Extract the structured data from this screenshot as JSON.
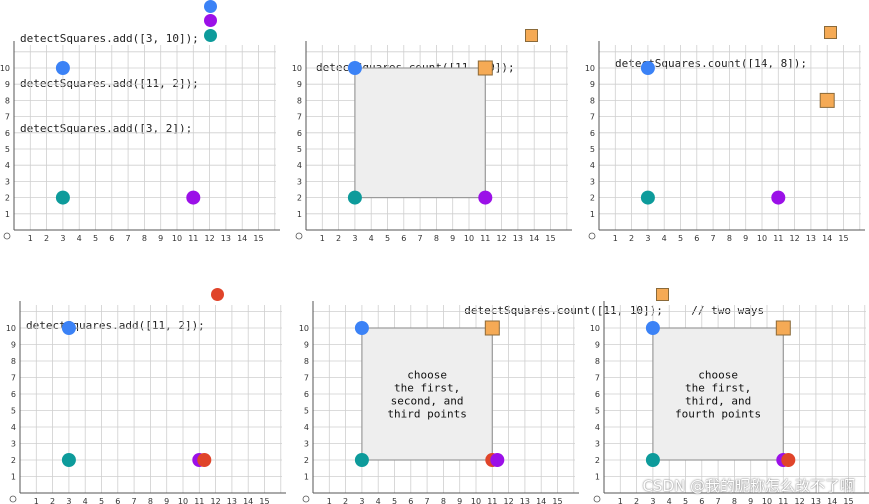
{
  "colors": {
    "blue": "#3b82f6",
    "purple": "#9b10e8",
    "teal": "#0d9b9b",
    "red": "#e0442a",
    "orange": "#f5aa55",
    "grid": "#cfcfcf",
    "axis": "#555555",
    "square_fill": "#eeeeee",
    "square_stroke": "#9a9a9a"
  },
  "captions": [
    {
      "lines": [
        "detectSquares.add([3, 10]);",
        "detectSquares.add([11, 2]);",
        "detectSquares.add([3, 2]);"
      ],
      "markers": [
        "blue",
        "purple",
        "teal"
      ]
    },
    {
      "lines": [
        "detectSquares.count([11, 10]);"
      ],
      "markers": [
        "orange"
      ]
    },
    {
      "lines": [
        "detectSquares.count([14, 8]);"
      ],
      "markers": [
        "orange"
      ]
    },
    {
      "lines": [
        "detectSquares.add([11, 2]);"
      ],
      "markers": [
        "red"
      ]
    },
    {
      "lines": [
        "detectSquares.count([11, 10]);",
        "// two ways"
      ],
      "markers": [
        "orange"
      ]
    }
  ],
  "chart_data": [
    {
      "type": "scatter",
      "x_ticks": [
        "1",
        "2",
        "3",
        "4",
        "5",
        "6",
        "7",
        "8",
        "9",
        "10",
        "11",
        "12",
        "13",
        "14",
        "15"
      ],
      "y_ticks": [
        "1",
        "2",
        "3",
        "4",
        "5",
        "6",
        "7",
        "8",
        "9",
        "10"
      ],
      "points": [
        {
          "x": 3,
          "y": 10,
          "color": "blue",
          "shape": "circle"
        },
        {
          "x": 3,
          "y": 2,
          "color": "teal",
          "shape": "circle"
        },
        {
          "x": 11,
          "y": 2,
          "color": "purple",
          "shape": "circle"
        }
      ]
    },
    {
      "type": "scatter",
      "x_ticks": [
        "1",
        "2",
        "3",
        "4",
        "5",
        "6",
        "7",
        "8",
        "9",
        "10",
        "11",
        "12",
        "13",
        "14",
        "15"
      ],
      "y_ticks": [
        "1",
        "2",
        "3",
        "4",
        "5",
        "6",
        "7",
        "8",
        "9",
        "10"
      ],
      "square": {
        "x1": 3,
        "y1": 2,
        "x2": 11,
        "y2": 10
      },
      "points": [
        {
          "x": 3,
          "y": 10,
          "color": "blue",
          "shape": "circle"
        },
        {
          "x": 3,
          "y": 2,
          "color": "teal",
          "shape": "circle"
        },
        {
          "x": 11,
          "y": 2,
          "color": "purple",
          "shape": "circle"
        },
        {
          "x": 11,
          "y": 10,
          "color": "orange",
          "shape": "square"
        }
      ]
    },
    {
      "type": "scatter",
      "x_ticks": [
        "1",
        "2",
        "3",
        "4",
        "5",
        "6",
        "7",
        "8",
        "9",
        "10",
        "11",
        "12",
        "13",
        "14",
        "15"
      ],
      "y_ticks": [
        "1",
        "2",
        "3",
        "4",
        "5",
        "6",
        "7",
        "8",
        "9",
        "10"
      ],
      "points": [
        {
          "x": 3,
          "y": 10,
          "color": "blue",
          "shape": "circle"
        },
        {
          "x": 3,
          "y": 2,
          "color": "teal",
          "shape": "circle"
        },
        {
          "x": 11,
          "y": 2,
          "color": "purple",
          "shape": "circle"
        },
        {
          "x": 14,
          "y": 8,
          "color": "orange",
          "shape": "square"
        }
      ]
    },
    {
      "type": "scatter",
      "x_ticks": [
        "1",
        "2",
        "3",
        "4",
        "5",
        "6",
        "7",
        "8",
        "9",
        "10",
        "11",
        "12",
        "13",
        "14",
        "15"
      ],
      "y_ticks": [
        "1",
        "2",
        "3",
        "4",
        "5",
        "6",
        "7",
        "8",
        "9",
        "10"
      ],
      "points": [
        {
          "x": 3,
          "y": 10,
          "color": "blue",
          "shape": "circle"
        },
        {
          "x": 3,
          "y": 2,
          "color": "teal",
          "shape": "circle"
        },
        {
          "x": 11,
          "y": 2,
          "color": "purple",
          "shape": "circle"
        },
        {
          "x": 11,
          "y": 2,
          "color": "red",
          "shape": "circle"
        }
      ]
    },
    {
      "type": "scatter",
      "x_ticks": [
        "1",
        "2",
        "3",
        "4",
        "5",
        "6",
        "7",
        "8",
        "9",
        "10",
        "11",
        "12",
        "13",
        "14",
        "15"
      ],
      "y_ticks": [
        "1",
        "2",
        "3",
        "4",
        "5",
        "6",
        "7",
        "8",
        "9",
        "10"
      ],
      "square": {
        "x1": 3,
        "y1": 2,
        "x2": 11,
        "y2": 10
      },
      "square_label": [
        "choose",
        "the first,",
        "second, and",
        "third points"
      ],
      "points": [
        {
          "x": 3,
          "y": 10,
          "color": "blue",
          "shape": "circle"
        },
        {
          "x": 3,
          "y": 2,
          "color": "teal",
          "shape": "circle"
        },
        {
          "x": 11,
          "y": 2,
          "color": "red",
          "shape": "circle"
        },
        {
          "x": 11,
          "y": 2,
          "color": "purple",
          "shape": "circle"
        },
        {
          "x": 11,
          "y": 10,
          "color": "orange",
          "shape": "square"
        }
      ]
    },
    {
      "type": "scatter",
      "x_ticks": [
        "1",
        "2",
        "3",
        "4",
        "5",
        "6",
        "7",
        "8",
        "9",
        "10",
        "11",
        "12",
        "13",
        "14",
        "15"
      ],
      "y_ticks": [
        "1",
        "2",
        "3",
        "4",
        "5",
        "6",
        "7",
        "8",
        "9",
        "10"
      ],
      "square": {
        "x1": 3,
        "y1": 2,
        "x2": 11,
        "y2": 10
      },
      "square_label": [
        "choose",
        "the first,",
        "third, and",
        "fourth points"
      ],
      "points": [
        {
          "x": 3,
          "y": 10,
          "color": "blue",
          "shape": "circle"
        },
        {
          "x": 3,
          "y": 2,
          "color": "teal",
          "shape": "circle"
        },
        {
          "x": 11,
          "y": 2,
          "color": "purple",
          "shape": "circle"
        },
        {
          "x": 11,
          "y": 2,
          "color": "red",
          "shape": "circle"
        },
        {
          "x": 11,
          "y": 10,
          "color": "orange",
          "shape": "square"
        }
      ]
    }
  ],
  "watermark": "CSDN @我的昵称怎么改不了啊"
}
